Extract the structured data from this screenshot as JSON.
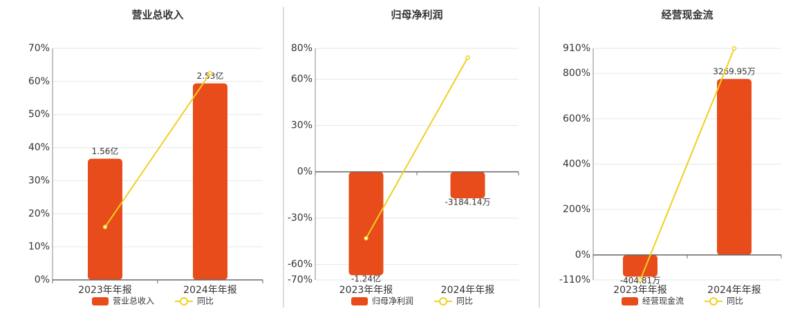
{
  "chart_data": [
    {
      "type": "bar-line",
      "title": "营业总收入",
      "categories": [
        "2023年年报",
        "2024年年报"
      ],
      "series": [
        {
          "name": "营业总收入",
          "color": "#e84c1a",
          "axis": "y2",
          "values": [
            156000000,
            253000000
          ],
          "value_labels": [
            "1.56亿",
            "2.53亿"
          ]
        },
        {
          "name": "同比",
          "color": "#f0d020",
          "values": [
            16,
            62.5
          ]
        }
      ],
      "ylim": [
        0,
        70
      ],
      "yticks": [
        {
          "value": 0,
          "label": "0%"
        },
        {
          "value": 10,
          "label": "10%"
        },
        {
          "value": 20,
          "label": "20%"
        },
        {
          "value": 30,
          "label": "30%"
        },
        {
          "value": 40,
          "label": "40%"
        },
        {
          "value": 50,
          "label": "50%"
        },
        {
          "value": 60,
          "label": "60%"
        },
        {
          "value": 70,
          "label": "70%"
        }
      ],
      "y2lim": [
        0,
        298000000
      ],
      "grid": true
    },
    {
      "type": "bar-line",
      "title": "归母净利润",
      "categories": [
        "2023年年报",
        "2024年年报"
      ],
      "series": [
        {
          "name": "归母净利润",
          "color": "#e84c1a",
          "axis": "y2",
          "values": [
            -124000000,
            -31841400
          ],
          "value_labels": [
            "-1.24亿",
            "-3184.14万"
          ]
        },
        {
          "name": "同比",
          "color": "#f0d020",
          "values": [
            -43,
            74
          ]
        }
      ],
      "ylim": [
        -70,
        80
      ],
      "yticks": [
        {
          "value": -70,
          "label": "-70%"
        },
        {
          "value": -60,
          "label": "-60%"
        },
        {
          "value": -30,
          "label": "-30%"
        },
        {
          "value": 0,
          "label": "0%"
        },
        {
          "value": 30,
          "label": "30%"
        },
        {
          "value": 60,
          "label": "60%"
        },
        {
          "value": 80,
          "label": "80%"
        }
      ],
      "y2lim": [
        -129600000,
        148000000
      ],
      "grid": true
    },
    {
      "type": "bar-line",
      "title": "经营现金流",
      "categories": [
        "2023年年报",
        "2024年年报"
      ],
      "series": [
        {
          "name": "经营现金流",
          "color": "#e84c1a",
          "axis": "y2",
          "values": [
            -4048100,
            32699500
          ],
          "value_labels": [
            "-404.81万",
            "3269.95万"
          ]
        },
        {
          "name": "同比",
          "color": "#f0d020",
          "values": [
            -110,
            910
          ]
        }
      ],
      "ylim": [
        -110,
        910
      ],
      "yticks": [
        {
          "value": -110,
          "label": "-110%"
        },
        {
          "value": 0,
          "label": "0%"
        },
        {
          "value": 200,
          "label": "200%"
        },
        {
          "value": 400,
          "label": "400%"
        },
        {
          "value": 600,
          "label": "600%"
        },
        {
          "value": 800,
          "label": "800%"
        },
        {
          "value": 910,
          "label": "910%"
        }
      ],
      "y2lim": [
        -4639000,
        38380000
      ],
      "grid": true
    }
  ]
}
